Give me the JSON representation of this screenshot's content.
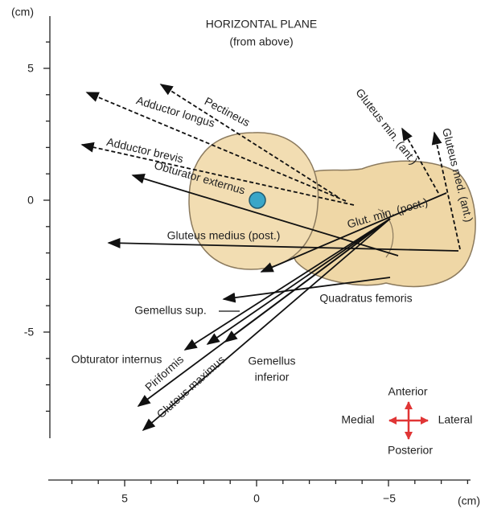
{
  "header": {
    "title": "HORIZONTAL PLANE",
    "subtitle": "(from above)"
  },
  "axes": {
    "y_unit": "(cm)",
    "x_unit": "(cm)",
    "y_ticks": [
      "5",
      "0",
      "-5"
    ],
    "x_ticks": [
      "5",
      "0",
      "−5"
    ]
  },
  "labels": {
    "adductor_longus": "Adductor longus",
    "pectineus": "Pectineus",
    "adductor_brevis": "Adductor brevis",
    "obturator_externus": "Obturator externus",
    "gluteus_min_ant": "Gluteus min. (ant.)",
    "gluteus_med_ant": "Gluteus med. (ant.)",
    "glut_min_post": "Glut. min. (post.)",
    "gluteus_medius_post": "Gluteus medius (post.)",
    "quadratus_femoris": "Quadratus femoris",
    "gemellus_sup": "Gemellus sup.",
    "obturator_internus": "Obturator internus",
    "gemellus_inferior": [
      "Gemellus",
      "inferior"
    ],
    "piriformis": "Piriformis",
    "gluteus_maximus": "Gluteus maximus"
  },
  "compass": {
    "anterior": "Anterior",
    "medial": "Medial",
    "lateral": "Lateral",
    "posterior": "Posterior"
  }
}
